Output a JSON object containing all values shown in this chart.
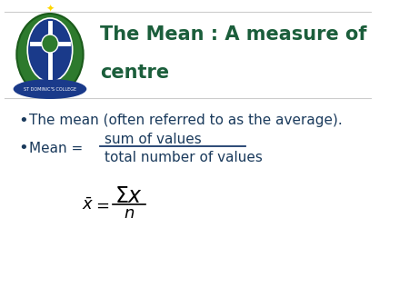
{
  "title_line1": "The Mean : A measure of",
  "title_line2": "centre",
  "title_color": "#1b5e3b",
  "title_fontsize": 15,
  "bullet1": "The mean (often referred to as the average).",
  "bullet2_prefix": "Mean = ",
  "bullet2_numerator": "sum of values",
  "bullet2_denominator": "total number of values",
  "text_color": "#1a3a6b",
  "bullet_fontsize": 11,
  "formula_fontsize": 13,
  "bg_color": "#ffffff",
  "bullet_color": "#1a3a5c",
  "header_line_color": "#cccccc",
  "fraction_line_color": "#1a3a6b",
  "logo_green_outer": "#2d7a2d",
  "logo_green_inner": "#1a5a1a",
  "logo_blue": "#1a3a8a",
  "logo_white": "#ffffff"
}
